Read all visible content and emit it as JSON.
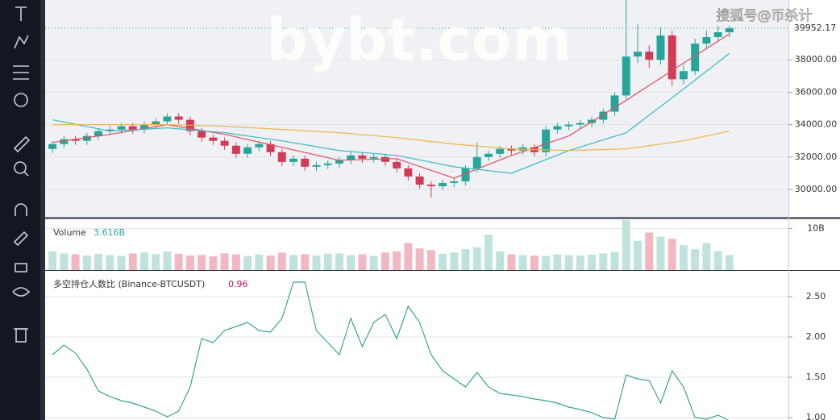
{
  "watermark": "bybt.com",
  "source_label": "搜狐号@币杀计",
  "chart_data": [
    {
      "type": "candlestick",
      "up_color": "#26a69a",
      "down_color": "#d23a55",
      "open": [
        32500,
        32800,
        33100,
        33000,
        33300,
        33600,
        33700,
        33900,
        33700,
        34000,
        34200,
        34500,
        34300,
        33600,
        33200,
        33000,
        32700,
        32200,
        32600,
        32800,
        32300,
        31700,
        31900,
        31400,
        31500,
        31600,
        31800,
        32100,
        31900,
        32000,
        31700,
        31300,
        30800,
        30300,
        30200,
        30400,
        30500,
        31300,
        32000,
        32200,
        32500,
        32400,
        32600,
        32300,
        33700,
        33900,
        34000,
        34100,
        34300,
        34800,
        35800,
        38200,
        38500,
        38000,
        39500,
        36800,
        37300,
        39000,
        39400,
        39700
      ],
      "high": [
        33000,
        33300,
        33300,
        33500,
        33800,
        33900,
        34100,
        34100,
        34200,
        34400,
        34700,
        34700,
        34500,
        33800,
        33400,
        33200,
        32900,
        32800,
        33000,
        33000,
        32500,
        32100,
        32100,
        31700,
        31800,
        32000,
        32300,
        32300,
        32200,
        32200,
        31900,
        31500,
        31000,
        30500,
        30600,
        30700,
        31500,
        32900,
        32400,
        32700,
        32700,
        32800,
        32800,
        33900,
        34100,
        34200,
        34300,
        34500,
        35000,
        36000,
        41700,
        40200,
        38900,
        40000,
        39800,
        37700,
        39300,
        39800,
        40100,
        40100
      ],
      "low": [
        32250,
        32550,
        32750,
        32750,
        33050,
        33350,
        33450,
        33450,
        33450,
        33750,
        33950,
        34050,
        33350,
        32950,
        32750,
        32450,
        31950,
        31950,
        32350,
        32050,
        31450,
        31450,
        31150,
        31150,
        31250,
        31350,
        31550,
        31650,
        31650,
        31450,
        31050,
        30550,
        30050,
        29500,
        29950,
        30150,
        30250,
        31050,
        31750,
        31950,
        32150,
        32150,
        32050,
        32050,
        33450,
        33650,
        33750,
        33850,
        34050,
        34550,
        35550,
        37800,
        37500,
        37700,
        36400,
        36500,
        37050,
        38700,
        39100,
        39400
      ],
      "close": [
        32800,
        33100,
        33000,
        33300,
        33600,
        33700,
        33900,
        33700,
        34000,
        34200,
        34500,
        34300,
        33600,
        33200,
        33000,
        32700,
        32200,
        32600,
        32800,
        32300,
        31700,
        31900,
        31400,
        31500,
        31600,
        31800,
        32100,
        31900,
        32000,
        31700,
        31300,
        30800,
        30300,
        30200,
        30400,
        30500,
        31300,
        32000,
        32200,
        32500,
        32400,
        32600,
        32300,
        33700,
        33900,
        34000,
        34100,
        34300,
        34800,
        35800,
        38200,
        38500,
        38000,
        39500,
        36800,
        37300,
        39000,
        39400,
        39700,
        39952.17
      ],
      "close_label": "39952.17",
      "lines": [
        {
          "color": "#e0505f",
          "x": [
            0,
            5,
            10,
            15,
            20,
            25,
            30,
            35,
            40,
            45,
            50,
            55,
            59
          ],
          "values": [
            32900,
            33400,
            34000,
            33400,
            32600,
            31800,
            31900,
            30700,
            32100,
            33300,
            35500,
            37800,
            39600
          ]
        },
        {
          "color": "#3cb8c8",
          "x": [
            0,
            5,
            10,
            15,
            20,
            25,
            30,
            35,
            40,
            45,
            50,
            55,
            59
          ],
          "values": [
            34300,
            33600,
            33800,
            33500,
            33000,
            32400,
            32100,
            31400,
            31000,
            32400,
            33500,
            36200,
            38400
          ]
        },
        {
          "color": "#f0b34a",
          "x": [
            0,
            5,
            10,
            15,
            20,
            25,
            30,
            35,
            40,
            45,
            50,
            55,
            59
          ],
          "values": [
            34000,
            34000,
            34000,
            33900,
            33700,
            33500,
            33200,
            32800,
            32500,
            32400,
            32500,
            33000,
            33600
          ]
        }
      ],
      "ylim": [
        28260,
        41690
      ],
      "yticks": [
        {
          "value": 30000,
          "label": "30000.00"
        },
        {
          "value": 32000,
          "label": "32000.00"
        },
        {
          "value": 34000,
          "label": "34000.00"
        },
        {
          "value": 36000,
          "label": "36000.00"
        },
        {
          "value": 38000,
          "label": "38000.00"
        }
      ]
    },
    {
      "type": "bar",
      "title": "Volume",
      "current_value": "3.616B",
      "values": [
        4.5,
        4,
        3.8,
        3.5,
        3.9,
        3.6,
        3.4,
        4,
        4.2,
        3.8,
        4.5,
        3.9,
        3.5,
        3.6,
        3.3,
        4,
        3.8,
        3.4,
        3.7,
        3.5,
        4.2,
        3.6,
        3.8,
        3.5,
        3.9,
        4,
        3.6,
        3.8,
        3.4,
        4.2,
        4.5,
        6.5,
        5.2,
        4.8,
        3.9,
        4.2,
        5,
        5.5,
        8.5,
        4.5,
        3.8,
        3.6,
        3.5,
        3.4,
        3.8,
        3.6,
        3.5,
        3.7,
        4,
        4.4,
        12,
        7,
        9,
        8,
        7.5,
        6,
        5,
        6.5,
        4.5,
        3.616
      ],
      "up_color": "#bfe3dc",
      "down_color": "#f1b7c3",
      "ylim": [
        0,
        12.2
      ],
      "yticks": [
        {
          "value": 10,
          "label": "10B"
        }
      ]
    },
    {
      "type": "line",
      "title": "多空持仓人数比 (Binance-BTCUSDT)",
      "color": "#3aa58a",
      "value_color": "#c2185b",
      "values": [
        1.78,
        1.9,
        1.8,
        1.6,
        1.33,
        1.26,
        1.21,
        1.18,
        1.13,
        1.08,
        1.01,
        1.08,
        1.38,
        1.98,
        1.93,
        2.08,
        2.13,
        2.18,
        2.08,
        2.06,
        2.23,
        2.68,
        2.68,
        2.08,
        1.93,
        1.78,
        2.23,
        1.88,
        2.18,
        2.28,
        1.98,
        2.38,
        2.18,
        1.78,
        1.58,
        1.48,
        1.38,
        1.56,
        1.38,
        1.3,
        1.28,
        1.26,
        1.23,
        1.21,
        1.18,
        1.13,
        1.1,
        1.06,
        1,
        0.98,
        1.53,
        1.48,
        1.46,
        1.18,
        1.58,
        1.38,
        1,
        0.98,
        1.03,
        0.96
      ],
      "ylim": [
        0.97,
        2.81
      ],
      "yticks": [
        {
          "value": 1,
          "label": "1.00"
        },
        {
          "value": 1.5,
          "label": "1.50"
        },
        {
          "value": 2,
          "label": "2.00"
        },
        {
          "value": 2.5,
          "label": "2.50"
        }
      ]
    }
  ]
}
